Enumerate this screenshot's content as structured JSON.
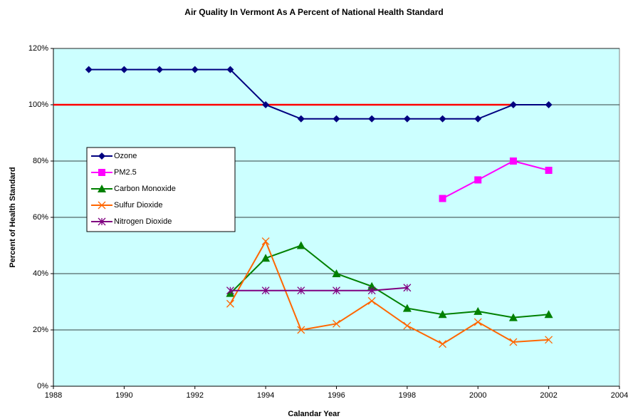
{
  "chart_data": {
    "type": "line",
    "title": "Air Quality In Vermont As A Percent of National Health Standard",
    "x_label": "Calandar Year",
    "y_label": "Percent of Health Standard",
    "xlim": [
      1988,
      2004
    ],
    "xticks": [
      1988,
      1990,
      1992,
      1994,
      1996,
      1998,
      2000,
      2002,
      2004
    ],
    "ylim": [
      0,
      120
    ],
    "yticks": [
      {
        "value": 0,
        "label": "0%"
      },
      {
        "value": 20,
        "label": "20%"
      },
      {
        "value": 40,
        "label": "40%"
      },
      {
        "value": 60,
        "label": "60%"
      },
      {
        "value": 80,
        "label": "80%"
      },
      {
        "value": 100,
        "label": "100%"
      },
      {
        "value": 120,
        "label": "120%"
      }
    ],
    "grid": true,
    "legend_position": "left",
    "series": [
      {
        "color": "#ff0000",
        "marker": "none",
        "x": [
          1988,
          2001
        ],
        "values": [
          100,
          100
        ]
      },
      {
        "name": "Ozone",
        "color": "#000080",
        "marker": "diamond",
        "x": [
          1989,
          1990,
          1991,
          1992,
          1993,
          1994,
          1995,
          1996,
          1997,
          1998,
          1999,
          2000,
          2001,
          2002
        ],
        "values": [
          112.5,
          112.5,
          112.5,
          112.5,
          112.5,
          100,
          95,
          95,
          95,
          95,
          95,
          95,
          100,
          100
        ]
      },
      {
        "name": "PM2.5",
        "color": "#ff00ff",
        "marker": "square",
        "x": [
          1999,
          2000,
          2001,
          2002
        ],
        "values": [
          66.7,
          73.3,
          80,
          76.7
        ]
      },
      {
        "name": "Carbon Monoxide",
        "color": "#008000",
        "marker": "triangle",
        "x": [
          1993,
          1994,
          1995,
          1996,
          1997,
          1998,
          1999,
          2000,
          2001,
          2002
        ],
        "values": [
          33,
          45.5,
          50,
          40,
          35.5,
          27.7,
          25.5,
          26.6,
          24.4,
          25.5
        ]
      },
      {
        "name": "Sulfur Dioxide",
        "color": "#ff6600",
        "marker": "x",
        "x": [
          1993,
          1994,
          1995,
          1996,
          1997,
          1998,
          1999,
          2000,
          2001,
          2002
        ],
        "values": [
          29.3,
          51.5,
          20,
          22.2,
          30.3,
          21.5,
          15,
          22.8,
          15.7,
          16.5
        ]
      },
      {
        "name": "Nitrogen Dioxide",
        "color": "#800080",
        "marker": "asterisk",
        "x": [
          1993,
          1994,
          1995,
          1996,
          1997,
          1998
        ],
        "values": [
          34,
          34,
          34,
          34,
          34,
          35
        ]
      }
    ]
  }
}
